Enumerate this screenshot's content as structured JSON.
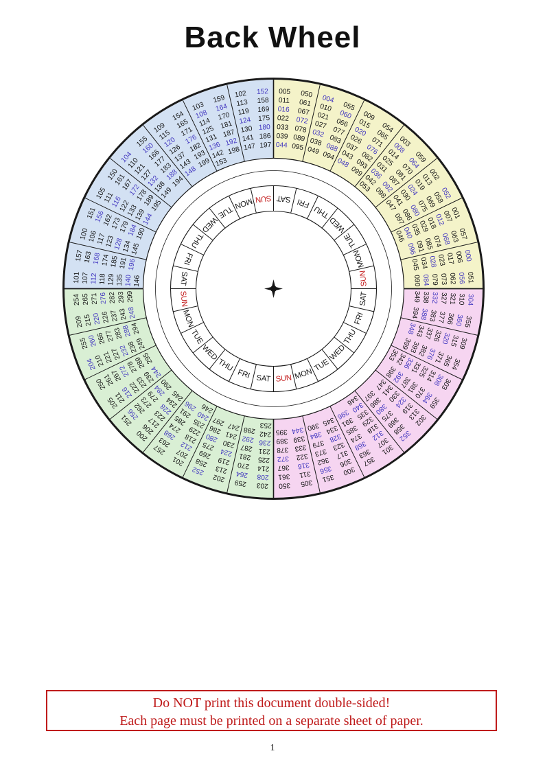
{
  "page": {
    "title": "Back Wheel",
    "page_number": "1"
  },
  "notice": {
    "line1": "Do NOT print this document double-sided!",
    "line2": "Each page must be printed on a separate sheet of paper."
  },
  "colors": {
    "quad_yellow": "#f4f3c9",
    "quad_pink": "#f6d5f1",
    "quad_green": "#d9efd4",
    "quad_blue": "#d3e1f3",
    "leap_year_number": "#4338c0",
    "ink": "#161616",
    "line": "#1a1a1a",
    "sunday_red": "#c41f1f"
  },
  "wheel": {
    "day_ring": {
      "segments_clockwise_from_top": [
        "SAT",
        "FRI",
        "THU",
        "WED",
        "TUE",
        "MON",
        "SUN",
        "SAT",
        "FRI",
        "THU",
        "WED",
        "TUE",
        "MON",
        "SUN",
        "SAT",
        "FRI",
        "THU",
        "WED",
        "TUE",
        "MON",
        "SUN",
        "SAT",
        "FRI",
        "THU",
        "WED",
        "TUE",
        "MON",
        "SUN"
      ]
    },
    "quadrants": [
      {
        "name": "years-000-099",
        "color_key": "quad_yellow",
        "start_deg": 0,
        "cells": [
          {
            "columns": [
              [
                "005",
                "011",
                "016",
                "022",
                "033",
                "039",
                "044"
              ],
              [
                "050",
                "061",
                "067",
                "072",
                "078",
                "089",
                "095"
              ]
            ]
          },
          {
            "columns": [
              [
                "004",
                "010",
                "021",
                "027",
                "032",
                "038",
                "049"
              ],
              [
                "055",
                "060",
                "066",
                "077",
                "083",
                "088",
                "094"
              ]
            ]
          },
          {
            "columns": [
              [
                "009",
                "015",
                "020",
                "026",
                "037",
                "043",
                "048"
              ],
              [
                "054",
                "065",
                "071",
                "076",
                "082",
                "093",
                "099"
              ]
            ]
          },
          {
            "columns": [
              [
                "003",
                "008",
                "014",
                "025",
                "031",
                "036",
                "042",
                "053"
              ],
              [
                "059",
                "064",
                "070",
                "081",
                "087",
                "092",
                "098"
              ]
            ]
          },
          {
            "columns": [
              [
                "002",
                "013",
                "019",
                "024",
                "030",
                "041",
                "047"
              ],
              [
                "052",
                "058",
                "069",
                "075",
                "080",
                "086",
                "097"
              ]
            ]
          },
          {
            "columns": [
              [
                "001",
                "007",
                "012",
                "018",
                "029",
                "035",
                "040",
                "046"
              ],
              [
                "057",
                "063",
                "068",
                "074",
                "085",
                "091",
                "096"
              ]
            ]
          },
          {
            "columns": [
              [
                "000",
                "006",
                "017",
                "023",
                "028",
                "034",
                "045"
              ],
              [
                "051",
                "056",
                "062",
                "073",
                "079",
                "084",
                "090"
              ]
            ]
          }
        ]
      },
      {
        "name": "years-300-399",
        "color_key": "quad_pink",
        "start_deg": 90,
        "cells": [
          {
            "columns": [
              [
                "304",
                "310",
                "321",
                "327",
                "332",
                "338",
                "349"
              ],
              [
                "355",
                "360",
                "366",
                "377",
                "383",
                "388",
                "394"
              ]
            ]
          },
          {
            "columns": [
              [
                "309",
                "315",
                "320",
                "326",
                "337",
                "343",
                "348"
              ],
              [
                "354",
                "365",
                "371",
                "376",
                "382",
                "393",
                "399"
              ]
            ]
          },
          {
            "columns": [
              [
                "303",
                "308",
                "314",
                "325",
                "331",
                "336",
                "342",
                "353"
              ],
              [
                "359",
                "364",
                "370",
                "381",
                "387",
                "392",
                "398"
              ]
            ]
          },
          {
            "columns": [
              [
                "302",
                "313",
                "319",
                "324",
                "330",
                "341",
                "347"
              ],
              [
                "352",
                "358",
                "369",
                "375",
                "380",
                "386",
                "397"
              ]
            ]
          },
          {
            "columns": [
              [
                "301",
                "307",
                "312",
                "318",
                "329",
                "335",
                "340",
                "346"
              ],
              [
                "357",
                "363",
                "368",
                "374",
                "385",
                "391",
                "396"
              ]
            ]
          },
          {
            "columns": [
              [
                "300",
                "306",
                "317",
                "323",
                "328",
                "334",
                "345"
              ],
              [
                "351",
                "356",
                "362",
                "373",
                "379",
                "384",
                "390"
              ]
            ]
          },
          {
            "columns": [
              [
                "305",
                "311",
                "316",
                "322",
                "333",
                "339",
                "344"
              ],
              [
                "350",
                "361",
                "367",
                "372",
                "378",
                "389",
                "395"
              ]
            ]
          }
        ]
      },
      {
        "name": "years-200-299",
        "color_key": "quad_green",
        "start_deg": 180,
        "cells": [
          {
            "columns": [
              [
                "203",
                "208",
                "214",
                "225",
                "231",
                "236",
                "242",
                "253"
              ],
              [
                "259",
                "264",
                "270",
                "281",
                "287",
                "292",
                "298"
              ]
            ]
          },
          {
            "columns": [
              [
                "202",
                "213",
                "219",
                "224",
                "230",
                "241",
                "247"
              ],
              [
                "252",
                "258",
                "269",
                "275",
                "280",
                "286",
                "297"
              ]
            ]
          },
          {
            "columns": [
              [
                "201",
                "207",
                "212",
                "218",
                "229",
                "235",
                "240",
                "246"
              ],
              [
                "257",
                "263",
                "268",
                "274",
                "285",
                "291",
                "296"
              ]
            ]
          },
          {
            "columns": [
              [
                "200",
                "206",
                "217",
                "223",
                "228",
                "234",
                "245"
              ],
              [
                "251",
                "256",
                "262",
                "273",
                "279",
                "284",
                "290"
              ]
            ]
          },
          {
            "columns": [
              [
                "205",
                "211",
                "216",
                "222",
                "233",
                "239",
                "244"
              ],
              [
                "250",
                "261",
                "267",
                "272",
                "278",
                "289",
                "295"
              ]
            ]
          },
          {
            "columns": [
              [
                "204",
                "210",
                "221",
                "227",
                "232",
                "238",
                "249"
              ],
              [
                "255",
                "260",
                "266",
                "277",
                "283",
                "288",
                "294"
              ]
            ]
          },
          {
            "columns": [
              [
                "209",
                "215",
                "220",
                "226",
                "237",
                "243",
                "248"
              ],
              [
                "254",
                "265",
                "271",
                "276",
                "282",
                "293",
                "299"
              ]
            ]
          }
        ]
      },
      {
        "name": "years-100-199",
        "color_key": "quad_blue",
        "start_deg": 270,
        "cells": [
          {
            "columns": [
              [
                "101",
                "107",
                "112",
                "118",
                "129",
                "135",
                "140",
                "146"
              ],
              [
                "157",
                "163",
                "168",
                "174",
                "185",
                "191",
                "196"
              ]
            ]
          },
          {
            "columns": [
              [
                "100",
                "106",
                "117",
                "123",
                "128",
                "134",
                "145"
              ],
              [
                "151",
                "156",
                "162",
                "173",
                "179",
                "184",
                "190"
              ]
            ]
          },
          {
            "columns": [
              [
                "105",
                "111",
                "116",
                "122",
                "133",
                "139",
                "144"
              ],
              [
                "150",
                "161",
                "167",
                "172",
                "178",
                "189",
                "195"
              ]
            ]
          },
          {
            "columns": [
              [
                "104",
                "110",
                "121",
                "127",
                "132",
                "138",
                "149"
              ],
              [
                "155",
                "160",
                "166",
                "177",
                "183",
                "188",
                "194"
              ]
            ]
          },
          {
            "columns": [
              [
                "109",
                "115",
                "120",
                "126",
                "137",
                "143",
                "148"
              ],
              [
                "154",
                "165",
                "171",
                "176",
                "182",
                "193",
                "199"
              ]
            ]
          },
          {
            "columns": [
              [
                "103",
                "108",
                "114",
                "125",
                "131",
                "136",
                "142",
                "153"
              ],
              [
                "159",
                "164",
                "170",
                "181",
                "187",
                "192",
                "198"
              ]
            ]
          },
          {
            "columns": [
              [
                "102",
                "113",
                "119",
                "124",
                "130",
                "141",
                "147"
              ],
              [
                "152",
                "158",
                "169",
                "175",
                "180",
                "186",
                "197"
              ]
            ]
          }
        ]
      }
    ]
  }
}
